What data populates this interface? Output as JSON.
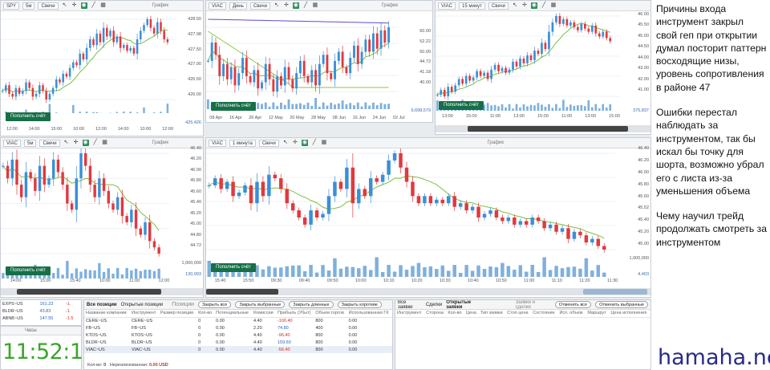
{
  "charts": [
    {
      "id": "c1",
      "symbol": "SPY",
      "tf": "5м",
      "type": "Свечи",
      "label": "График",
      "y_labels": [
        "428.50",
        "427.98",
        "427.50",
        "427.00",
        "426.50",
        "426.00"
      ],
      "x_labels": [
        "12:00",
        "14:00",
        "15:00",
        "10:00",
        "12:00",
        "14:00",
        "10:00",
        "12:00"
      ],
      "vol_label": "425,426",
      "button": "Пополнить счёт"
    },
    {
      "id": "c2",
      "symbol": "VIAC",
      "tf": "День",
      "type": "Свечи",
      "label": "График",
      "y_labels": [
        "60.00",
        "52.22",
        "50.00",
        "44.72",
        "41.18",
        "40.00"
      ],
      "x_labels": [
        "08 Apr",
        "16 Apr",
        "26 Apr",
        "12 May",
        "20 May",
        "28 May",
        "08 Jun",
        "16 Jun",
        "24 Jun",
        "02 Jul"
      ],
      "vol_label": "9,698,579",
      "button": "Пополнить счёт"
    },
    {
      "id": "c3",
      "symbol": "VIAC",
      "tf": "15 минут",
      "type": "Свечи",
      "label": "График",
      "y_labels": [
        "46.00",
        "45.50",
        "45.00",
        "44.50",
        "44.00",
        "43.00",
        "42.00",
        "41.00"
      ],
      "x_labels": [
        "13:00",
        "15:00",
        "11:00",
        "13:00",
        "15:00",
        "11:00",
        "13:00",
        "15:00"
      ],
      "vol_label": "375,837",
      "button": "Пополнить счёт"
    },
    {
      "id": "c4",
      "symbol": "VIAC",
      "tf": "5м",
      "type": "Свечи",
      "label": "График",
      "y_labels": [
        "46.40",
        "46.20",
        "46.00",
        "45.80",
        "45.60",
        "45.40",
        "45.20",
        "45.00",
        "44.80",
        "44.72"
      ],
      "x_labels": [
        "14:00",
        "15:00",
        "15:40",
        "10:00",
        "11:00",
        "12:00"
      ],
      "vol_label": "130,993",
      "vol_top": "1,000,000",
      "button": "Пополнить счёт"
    },
    {
      "id": "c5",
      "symbol": "VIAC",
      "tf": "1 минута",
      "type": "Свечи",
      "label": "График",
      "y_labels": [
        "46.40",
        "46.20",
        "46.00",
        "45.80",
        "45.60",
        "45.52",
        "45.40",
        "45.20",
        "45.00"
      ],
      "x_labels": [
        "15:40",
        "15:50",
        "09:30",
        "09:40",
        "09:50",
        "10:00",
        "10:10",
        "10:20",
        "10:30",
        "10:40",
        "10:50",
        "11:00",
        "11:10",
        "11:20",
        "11:30"
      ],
      "vol_label": "4,403",
      "vol_top": "1,000,000",
      "button": "Пополнить счёт"
    }
  ],
  "watchlist": [
    {
      "sym": "EXPS~US",
      "price": "161.23",
      "chg": "-1."
    },
    {
      "sym": "BLDR~US",
      "price": "43.83",
      "chg": "-1."
    },
    {
      "sym": "ABNB~US",
      "price": "147.55",
      "chg": "-1.5"
    }
  ],
  "clock": {
    "title": "Часы",
    "time": "11:52:14"
  },
  "positions": {
    "tabs": [
      "Все позиции",
      "Открытые позиции"
    ],
    "title": "Позиции",
    "buttons": [
      "Закрыть все",
      "Закрыть выбранные",
      "Закрыть длинные",
      "Закрыть короткие"
    ],
    "columns": [
      "Название компании",
      "Инструмент",
      "Размер позиции",
      "Кол-во",
      "Потенциальные",
      "Комиссии",
      "Прибыль (Убыт)",
      "Объем торгов",
      "Использованная ГК"
    ],
    "rows": [
      [
        "CERE~US",
        "CERE~US",
        "",
        "0",
        "0.00",
        "4.40",
        "-100.40",
        "800",
        "0.00"
      ],
      [
        "FB~US",
        "FB~US",
        "",
        "0",
        "0.00",
        "2.20",
        "74.80",
        "400",
        "0.00"
      ],
      [
        "KTOS~US",
        "KTOS~US",
        "",
        "0",
        "0.00",
        "4.40",
        "-96.40",
        "800",
        "0.00"
      ],
      [
        "BLDR~US",
        "BLDR~US",
        "",
        "0",
        "0.00",
        "4.40",
        "159.60",
        "800",
        "0.00"
      ],
      [
        "VIAC~US",
        "VIAC~US",
        "",
        "0",
        "0.00",
        "4.40",
        "-56.40",
        "800",
        "0.00"
      ]
    ],
    "footer_qty_label": "Кол-во:",
    "footer_qty": "0",
    "footer_unreal_label": "Нереализованная:",
    "footer_unreal": "0.00 USD"
  },
  "orders": {
    "tabs": [
      "Все заявки",
      "Сделки",
      "Открытые заявки"
    ],
    "columns": [
      "Инструмент",
      "Сторона",
      "Кол-во",
      "Цена"
    ]
  },
  "deals": {
    "title": "Заявки и сделки",
    "buttons": [
      "Отменить все",
      "Отменить выбранные"
    ],
    "columns": [
      "Тип заявки",
      "Стоп цена",
      "Состояние",
      "Исп. объем",
      "Маршрут",
      "Цена исполнения"
    ]
  },
  "notes": [
    "Причины входа инструмент закрыл свой геп при открытии думал посторит паттерн восходящие низы, уровень сопротивления в районе 47",
    "Ошибки перестал наблюдать за инструментом, так бы искал бы точку для шорта, возможно убрал его с листа из-за уменьшения объема",
    "Чему научил трейд продолжать смотреть за инструментом"
  ],
  "watermark": "hamaha.net",
  "colors": {
    "up": "#3a8fd8",
    "down": "#e0393e",
    "ma_green": "#7bc043",
    "ma_purple": "#5a4fcf",
    "button_green": "#166f47",
    "clock_green": "#3aa52b"
  },
  "series": {
    "c1": [
      426.4,
      426.6,
      426.3,
      426.2,
      426.5,
      426.3,
      426.4,
      426.7,
      426.5,
      426.2,
      426.3,
      426.6,
      426.4,
      426.1,
      426.3,
      426.5,
      426.8,
      426.7,
      427.0,
      426.9,
      427.2,
      427.4,
      427.3,
      427.7,
      427.5,
      427.9,
      428.2,
      428.0,
      428.4,
      428.1,
      428.6,
      428.3,
      428.5,
      428.1,
      428.3,
      427.9,
      428.0,
      427.8,
      427.9,
      427.7,
      428.2,
      428.5,
      428.7,
      428.9,
      428.6,
      428.4,
      428.8,
      428.5,
      428.2,
      428.1
    ],
    "c2": [
      43.6,
      44.2,
      43.8,
      43.1,
      43.5,
      43.0,
      43.4,
      42.8,
      43.2,
      43.7,
      43.1,
      42.9,
      43.3,
      42.7,
      42.9,
      43.5,
      43.0,
      42.6,
      43.1,
      42.8,
      43.4,
      43.0,
      42.7,
      43.2,
      43.6,
      43.1,
      42.9,
      43.3,
      42.8,
      43.5,
      43.8,
      43.2,
      43.0,
      43.6,
      43.9,
      43.4,
      43.2,
      43.7,
      44.1,
      43.5,
      43.9,
      44.3,
      43.9,
      44.5,
      44.0,
      44.6,
      44.2,
      44.7
    ],
    "c3": [
      41.3,
      41.6,
      41.2,
      41.8,
      41.5,
      41.9,
      42.3,
      42.0,
      42.5,
      42.2,
      42.4,
      42.8,
      42.5,
      42.7,
      42.3,
      42.9,
      43.2,
      42.8,
      43.0,
      42.7,
      42.9,
      43.4,
      43.1,
      43.6,
      43.3,
      43.8,
      43.5,
      44.1,
      43.9,
      44.6,
      44.2,
      45.3,
      45.9,
      46.3,
      45.8,
      46.1,
      45.7,
      45.9,
      45.6,
      45.4,
      45.8,
      45.5,
      45.3,
      45.7,
      45.2,
      45.0,
      45.3,
      44.9,
      44.7
    ],
    "c4": [
      46.1,
      45.9,
      46.2,
      45.8,
      45.6,
      46.0,
      45.9,
      45.7,
      46.1,
      45.8,
      45.9,
      46.2,
      46.0,
      45.8,
      45.5,
      45.4,
      45.9,
      46.3,
      46.1,
      45.8,
      45.6,
      45.9,
      45.7,
      45.5,
      45.4,
      45.6,
      45.3,
      45.2,
      45.4,
      45.1,
      45.0,
      45.2,
      44.9,
      44.8,
      44.7
    ],
    "c5": [
      45.85,
      45.95,
      45.8,
      45.9,
      45.7,
      45.75,
      45.85,
      45.6,
      45.9,
      45.7,
      46.0,
      45.95,
      45.8,
      45.6,
      45.5,
      45.4,
      45.3,
      45.5,
      45.4,
      45.45,
      45.7,
      45.9,
      45.8,
      46.1,
      45.6,
      45.8,
      45.7,
      45.95,
      45.9,
      46.0,
      46.2,
      46.3,
      46.1,
      45.9,
      45.7,
      45.6,
      45.7,
      45.6,
      45.65,
      45.6,
      45.7,
      45.55,
      45.6,
      45.5,
      45.55,
      45.4,
      45.45,
      45.5,
      45.4,
      45.35,
      45.4,
      45.3,
      45.35,
      45.3,
      45.4,
      45.35,
      45.25,
      45.3,
      45.2,
      45.25,
      45.1,
      45.2,
      45.15,
      45.05,
      45.1,
      45.0,
      44.95
    ]
  }
}
